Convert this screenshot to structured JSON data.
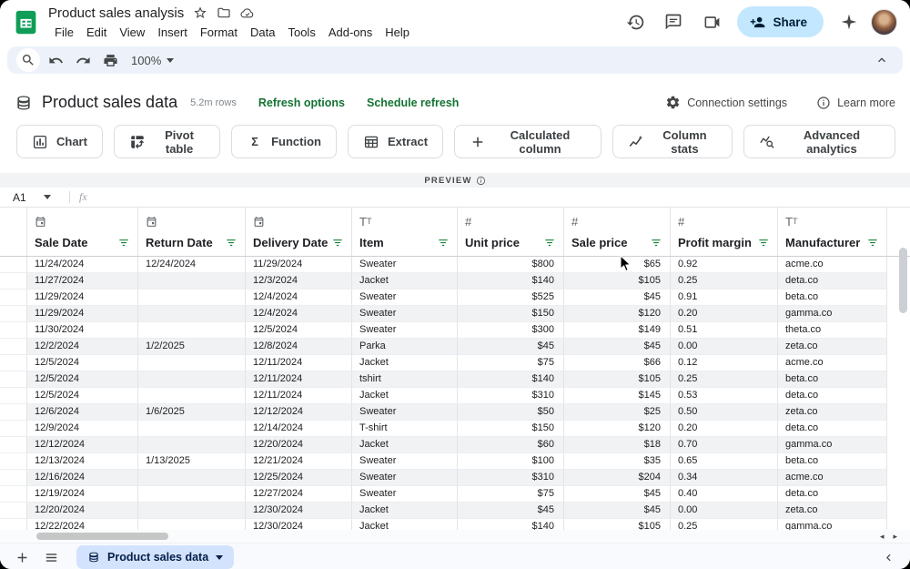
{
  "window": {
    "title": "Product sales analysis"
  },
  "menu": {
    "items": [
      "File",
      "Edit",
      "View",
      "Insert",
      "Format",
      "Data",
      "Tools",
      "Add-ons",
      "Help"
    ]
  },
  "topbar_right": {
    "share_label": "Share"
  },
  "quickbar": {
    "zoom_value": "100%"
  },
  "datasource": {
    "title": "Product sales data",
    "row_count": "5.2m rows",
    "refresh_options_label": "Refresh options",
    "schedule_refresh_label": "Schedule refresh",
    "connection_settings_label": "Connection settings",
    "learn_more_label": "Learn more"
  },
  "actions": [
    {
      "id": "chart",
      "label": "Chart"
    },
    {
      "id": "pivot-table",
      "label": "Pivot table"
    },
    {
      "id": "function",
      "label": "Function"
    },
    {
      "id": "extract",
      "label": "Extract"
    },
    {
      "id": "calculated-column",
      "label": "Calculated column"
    },
    {
      "id": "column-stats",
      "label": "Column stats"
    },
    {
      "id": "advanced-analytics",
      "label": "Advanced analytics"
    }
  ],
  "preview": {
    "label": "PREVIEW"
  },
  "formula_bar": {
    "cell_reference": "A1",
    "value": ""
  },
  "table": {
    "columns": [
      {
        "name": "Sale Date",
        "type": "date"
      },
      {
        "name": "Return Date",
        "type": "date"
      },
      {
        "name": "Delivery Date",
        "type": "date"
      },
      {
        "name": "Item",
        "type": "text"
      },
      {
        "name": "Unit price",
        "type": "number"
      },
      {
        "name": "Sale price",
        "type": "number"
      },
      {
        "name": "Profit margin",
        "type": "number"
      },
      {
        "name": "Manufacturer",
        "type": "text"
      }
    ],
    "rows": [
      [
        "11/24/2024",
        "12/24/2024",
        "11/29/2024",
        "Sweater",
        "$800",
        "$65",
        "0.92",
        "acme.co"
      ],
      [
        "11/27/2024",
        "",
        "12/3/2024",
        "Jacket",
        "$140",
        "$105",
        "0.25",
        "deta.co"
      ],
      [
        "11/29/2024",
        "",
        "12/4/2024",
        "Sweater",
        "$525",
        "$45",
        "0.91",
        "beta.co"
      ],
      [
        "11/29/2024",
        "",
        "12/4/2024",
        "Sweater",
        "$150",
        "$120",
        "0.20",
        "gamma.co"
      ],
      [
        "11/30/2024",
        "",
        "12/5/2024",
        "Sweater",
        "$300",
        "$149",
        "0.51",
        "theta.co"
      ],
      [
        "12/2/2024",
        "1/2/2025",
        "12/8/2024",
        "Parka",
        "$45",
        "$45",
        "0.00",
        "zeta.co"
      ],
      [
        "12/5/2024",
        "",
        "12/11/2024",
        "Jacket",
        "$75",
        "$66",
        "0.12",
        "acme.co"
      ],
      [
        "12/5/2024",
        "",
        "12/11/2024",
        "tshirt",
        "$140",
        "$105",
        "0.25",
        "beta.co"
      ],
      [
        "12/5/2024",
        "",
        "12/11/2024",
        "Jacket",
        "$310",
        "$145",
        "0.53",
        "deta.co"
      ],
      [
        "12/6/2024",
        "1/6/2025",
        "12/12/2024",
        "Sweater",
        "$50",
        "$25",
        "0.50",
        "zeta.co"
      ],
      [
        "12/9/2024",
        "",
        "12/14/2024",
        "T-shirt",
        "$150",
        "$120",
        "0.20",
        "deta.co"
      ],
      [
        "12/12/2024",
        "",
        "12/20/2024",
        "Jacket",
        "$60",
        "$18",
        "0.70",
        "gamma.co"
      ],
      [
        "12/13/2024",
        "1/13/2025",
        "12/21/2024",
        "Sweater",
        "$100",
        "$35",
        "0.65",
        "beta.co"
      ],
      [
        "12/16/2024",
        "",
        "12/25/2024",
        "Sweater",
        "$310",
        "$204",
        "0.34",
        "acme.co"
      ],
      [
        "12/19/2024",
        "",
        "12/27/2024",
        "Sweater",
        "$75",
        "$45",
        "0.40",
        "deta.co"
      ],
      [
        "12/20/2024",
        "",
        "12/30/2024",
        "Jacket",
        "$45",
        "$45",
        "0.00",
        "zeta.co"
      ],
      [
        "12/22/2024",
        "",
        "12/30/2024",
        "Jacket",
        "$140",
        "$105",
        "0.25",
        "gamma.co"
      ]
    ]
  },
  "sheet_bar": {
    "active_tab": "Product sales data"
  },
  "colors": {
    "accent_green": "#137333",
    "filter_green": "#188038",
    "share_bg": "#c2e7ff",
    "tab_bg": "#d3e3fd",
    "toolbar_bg": "#edf2fa",
    "banding": "#f0f2f4",
    "logo_green": "#0f9d58"
  }
}
